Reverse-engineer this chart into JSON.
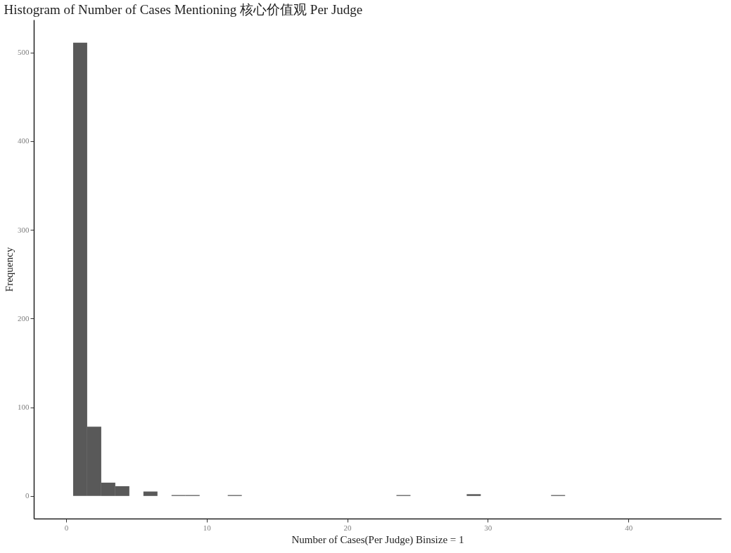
{
  "chart_data": {
    "type": "histogram",
    "title": "Histogram of Number of Cases Mentioning 核心价值观 Per Judge",
    "xlabel": "Number of Cases(Per Judge) Binsize = 1",
    "ylabel": "Frequency",
    "bins": [
      0.5,
      1.5,
      2.5,
      3.5,
      4.5,
      5.5,
      6.5,
      7.5,
      8.5,
      9.5,
      10.5,
      11.5,
      12.5,
      13.5,
      14.5,
      15.5,
      16.5,
      17.5,
      18.5,
      19.5,
      20.5,
      21.5,
      22.5,
      23.5,
      24.5,
      25.5,
      26.5,
      27.5,
      28.5,
      29.5,
      30.5,
      31.5,
      32.5,
      33.5,
      34.5,
      35.5
    ],
    "values": [
      511,
      78,
      15,
      11,
      0,
      5,
      0,
      1,
      1,
      0,
      0,
      1,
      0,
      0,
      0,
      0,
      0,
      0,
      0,
      0,
      0,
      0,
      0,
      1,
      0,
      0,
      0,
      0,
      2,
      0,
      0,
      0,
      0,
      0,
      1
    ],
    "color": "#595959",
    "xlim": [
      -2.3,
      46.6
    ],
    "xticks": [
      0,
      10,
      20,
      30,
      40
    ],
    "ylim": [
      -25.5,
      537
    ],
    "yticks": [
      0,
      100,
      200,
      300,
      400,
      500
    ],
    "grid": false
  }
}
